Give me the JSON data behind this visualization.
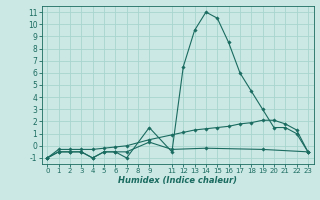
{
  "xlabel": "Humidex (Indice chaleur)",
  "bg_color": "#cce8e4",
  "grid_color": "#a8d4ce",
  "line_color": "#1a6b60",
  "xlim": [
    -0.5,
    23.5
  ],
  "ylim": [
    -1.5,
    11.5
  ],
  "xticks": [
    0,
    1,
    2,
    3,
    4,
    5,
    6,
    7,
    8,
    9,
    11,
    12,
    13,
    14,
    15,
    16,
    17,
    18,
    19,
    20,
    21,
    22,
    23
  ],
  "yticks": [
    -1,
    0,
    1,
    2,
    3,
    4,
    5,
    6,
    7,
    8,
    9,
    10,
    11
  ],
  "series1": [
    [
      0,
      -1
    ],
    [
      1,
      -0.5
    ],
    [
      2,
      -0.5
    ],
    [
      3,
      -0.5
    ],
    [
      4,
      -1
    ],
    [
      5,
      -0.5
    ],
    [
      6,
      -0.5
    ],
    [
      7,
      -1
    ],
    [
      9,
      1.5
    ],
    [
      11,
      -0.5
    ],
    [
      12,
      6.5
    ],
    [
      13,
      9.5
    ],
    [
      14,
      11
    ],
    [
      15,
      10.5
    ],
    [
      16,
      8.5
    ],
    [
      17,
      6
    ],
    [
      18,
      4.5
    ],
    [
      19,
      3
    ],
    [
      20,
      1.5
    ],
    [
      21,
      1.5
    ],
    [
      22,
      1
    ],
    [
      23,
      -0.5
    ]
  ],
  "series2": [
    [
      0,
      -1
    ],
    [
      1,
      -0.3
    ],
    [
      2,
      -0.3
    ],
    [
      3,
      -0.3
    ],
    [
      4,
      -0.3
    ],
    [
      5,
      -0.2
    ],
    [
      6,
      -0.1
    ],
    [
      7,
      0.0
    ],
    [
      9,
      0.5
    ],
    [
      11,
      0.9
    ],
    [
      12,
      1.1
    ],
    [
      13,
      1.3
    ],
    [
      14,
      1.4
    ],
    [
      15,
      1.5
    ],
    [
      16,
      1.6
    ],
    [
      17,
      1.8
    ],
    [
      18,
      1.9
    ],
    [
      19,
      2.1
    ],
    [
      20,
      2.1
    ],
    [
      21,
      1.8
    ],
    [
      22,
      1.3
    ],
    [
      23,
      -0.5
    ]
  ],
  "series3": [
    [
      0,
      -1
    ],
    [
      1,
      -0.5
    ],
    [
      2,
      -0.5
    ],
    [
      3,
      -0.5
    ],
    [
      4,
      -1
    ],
    [
      5,
      -0.5
    ],
    [
      6,
      -0.5
    ],
    [
      7,
      -0.5
    ],
    [
      9,
      0.3
    ],
    [
      11,
      -0.3
    ],
    [
      14,
      -0.2
    ],
    [
      19,
      -0.3
    ],
    [
      23,
      -0.5
    ]
  ]
}
